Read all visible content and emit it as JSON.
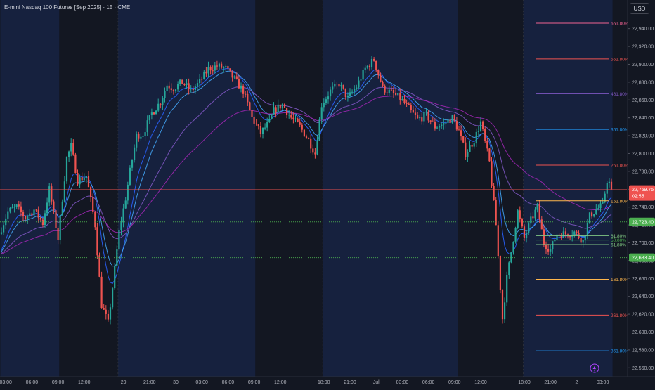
{
  "header": {
    "title": "E-mini Nasdaq 100 Futures [Sep 2025] · 15 · CME",
    "currency": "USD"
  },
  "colors": {
    "background": "#131722",
    "session_shade": "#16213e",
    "up": "#26a69a",
    "down": "#ef5350",
    "ma_fast": "#2962ff",
    "ma_mid": "#42a5f5",
    "ma_slow": "#7e57c2",
    "ma_slowest": "#9c27b0",
    "dotted_line": "#4caf50"
  },
  "price_axis": {
    "ticks": [
      "22,960.00",
      "22,940.00",
      "22,920.00",
      "22,900.00",
      "22,880.00",
      "22,860.00",
      "22,840.00",
      "22,820.00",
      "22,800.00",
      "22,780.00",
      "22,760.00",
      "22,740.00",
      "22,720.00",
      "22,700.00",
      "22,680.00",
      "22,660.00",
      "22,640.00",
      "22,620.00",
      "22,600.00",
      "22,580.00",
      "22,560.00"
    ],
    "current_price": {
      "price": "22,759.75",
      "countdown": "02:55",
      "value": 22759.75
    },
    "level_labels": [
      {
        "text": "22,723.40",
        "value": 22723.4
      },
      {
        "text": "22,683.40",
        "value": 22683.4
      }
    ]
  },
  "time_axis": {
    "ticks": [
      {
        "label": "03:00",
        "bar": 2
      },
      {
        "label": "06:00",
        "bar": 14
      },
      {
        "label": "09:00",
        "bar": 26
      },
      {
        "label": "12:00",
        "bar": 38
      },
      {
        "label": "29",
        "bar": 56
      },
      {
        "label": "21:00",
        "bar": 68
      },
      {
        "label": "30",
        "bar": 80
      },
      {
        "label": "03:00",
        "bar": 92
      },
      {
        "label": "06:00",
        "bar": 104
      },
      {
        "label": "09:00",
        "bar": 116
      },
      {
        "label": "12:00",
        "bar": 128
      },
      {
        "label": "18:00",
        "bar": 148
      },
      {
        "label": "21:00",
        "bar": 160
      },
      {
        "label": "Jul",
        "bar": 172
      },
      {
        "label": "03:00",
        "bar": 184
      },
      {
        "label": "06:00",
        "bar": 196
      },
      {
        "label": "09:00",
        "bar": 208
      },
      {
        "label": "12:00",
        "bar": 220
      },
      {
        "label": "18:00",
        "bar": 240
      },
      {
        "label": "21:00",
        "bar": 252
      },
      {
        "label": "2",
        "bar": 264
      },
      {
        "label": "03:00",
        "bar": 276
      }
    ]
  },
  "fib_levels": [
    {
      "label": "661.80%",
      "value": 22946,
      "color": "#f06292"
    },
    {
      "label": "561.80%",
      "value": 22906,
      "color": "#ef5350"
    },
    {
      "label": "461.80%",
      "value": 22867,
      "color": "#7e57c2"
    },
    {
      "label": "361.80%",
      "value": 22827,
      "color": "#2196f3"
    },
    {
      "label": "261.80%",
      "value": 22787,
      "color": "#ef5350"
    },
    {
      "label": "161.80%",
      "value": 22747,
      "color": "#ffb74d"
    },
    {
      "label": "61.80%",
      "value": 22708,
      "color": "#81c784"
    },
    {
      "label": "50.00%",
      "value": 22703,
      "color": "#4caf50"
    },
    {
      "label": "61.80%",
      "value": 22698,
      "color": "#81c784"
    },
    {
      "label": "161.80%",
      "value": 22659,
      "color": "#ffb74d"
    },
    {
      "label": "261.80%",
      "value": 22619,
      "color": "#ef5350"
    },
    {
      "label": "361.80%",
      "value": 22579,
      "color": "#2196f3"
    }
  ],
  "chart_data": {
    "type": "candlestick",
    "title": "E-mini Nasdaq 100 Futures [Sep 2025] · 15 · CME",
    "ylim": [
      22550,
      22972
    ],
    "grid": false,
    "bar_count": 281,
    "sessions": [
      [
        0,
        27
      ],
      [
        54,
        117
      ],
      [
        148,
        210
      ],
      [
        240,
        281
      ]
    ],
    "path_anchors": [
      [
        0,
        22710
      ],
      [
        4,
        22735
      ],
      [
        8,
        22740
      ],
      [
        12,
        22728
      ],
      [
        16,
        22737
      ],
      [
        20,
        22722
      ],
      [
        23,
        22760
      ],
      [
        27,
        22705
      ],
      [
        31,
        22795
      ],
      [
        33,
        22808
      ],
      [
        36,
        22770
      ],
      [
        40,
        22775
      ],
      [
        44,
        22720
      ],
      [
        47,
        22630
      ],
      [
        50,
        22610
      ],
      [
        52,
        22650
      ],
      [
        55,
        22712
      ],
      [
        58,
        22750
      ],
      [
        60,
        22780
      ],
      [
        63,
        22820
      ],
      [
        66,
        22822
      ],
      [
        70,
        22845
      ],
      [
        74,
        22858
      ],
      [
        77,
        22877
      ],
      [
        80,
        22873
      ],
      [
        84,
        22880
      ],
      [
        88,
        22870
      ],
      [
        92,
        22880
      ],
      [
        96,
        22895
      ],
      [
        100,
        22898
      ],
      [
        104,
        22895
      ],
      [
        108,
        22883
      ],
      [
        112,
        22870
      ],
      [
        116,
        22840
      ],
      [
        120,
        22823
      ],
      [
        124,
        22835
      ],
      [
        126,
        22848
      ],
      [
        130,
        22855
      ],
      [
        134,
        22840
      ],
      [
        138,
        22830
      ],
      [
        142,
        22815
      ],
      [
        145,
        22800
      ],
      [
        148,
        22855
      ],
      [
        152,
        22870
      ],
      [
        156,
        22878
      ],
      [
        160,
        22862
      ],
      [
        164,
        22875
      ],
      [
        168,
        22895
      ],
      [
        172,
        22905
      ],
      [
        176,
        22873
      ],
      [
        180,
        22868
      ],
      [
        184,
        22862
      ],
      [
        188,
        22850
      ],
      [
        192,
        22838
      ],
      [
        196,
        22843
      ],
      [
        200,
        22830
      ],
      [
        204,
        22833
      ],
      [
        208,
        22840
      ],
      [
        211,
        22825
      ],
      [
        214,
        22800
      ],
      [
        218,
        22815
      ],
      [
        221,
        22835
      ],
      [
        225,
        22790
      ],
      [
        228,
        22720
      ],
      [
        231,
        22615
      ],
      [
        233,
        22660
      ],
      [
        236,
        22705
      ],
      [
        238,
        22735
      ],
      [
        241,
        22705
      ],
      [
        244,
        22725
      ],
      [
        247,
        22740
      ],
      [
        250,
        22700
      ],
      [
        253,
        22692
      ],
      [
        256,
        22710
      ],
      [
        260,
        22710
      ],
      [
        264,
        22712
      ],
      [
        268,
        22702
      ],
      [
        271,
        22730
      ],
      [
        274,
        22737
      ],
      [
        277,
        22742
      ],
      [
        279,
        22770
      ],
      [
        281,
        22764
      ]
    ],
    "last_close": 22759.75,
    "moving_averages": [
      {
        "period": 9,
        "color": "#2962ff"
      },
      {
        "period": 14,
        "color": "#42a5f5"
      },
      {
        "period": 34,
        "color": "#7e57c2"
      },
      {
        "period": 62,
        "color": "#9c27b0"
      }
    ],
    "horizontal_lines": [
      {
        "value": 22759.75,
        "color": "#ef5350",
        "style": "solid"
      },
      {
        "value": 22723.4,
        "color": "#4caf50",
        "style": "dotted"
      },
      {
        "value": 22683.4,
        "color": "#4caf50",
        "style": "dotted"
      }
    ]
  }
}
